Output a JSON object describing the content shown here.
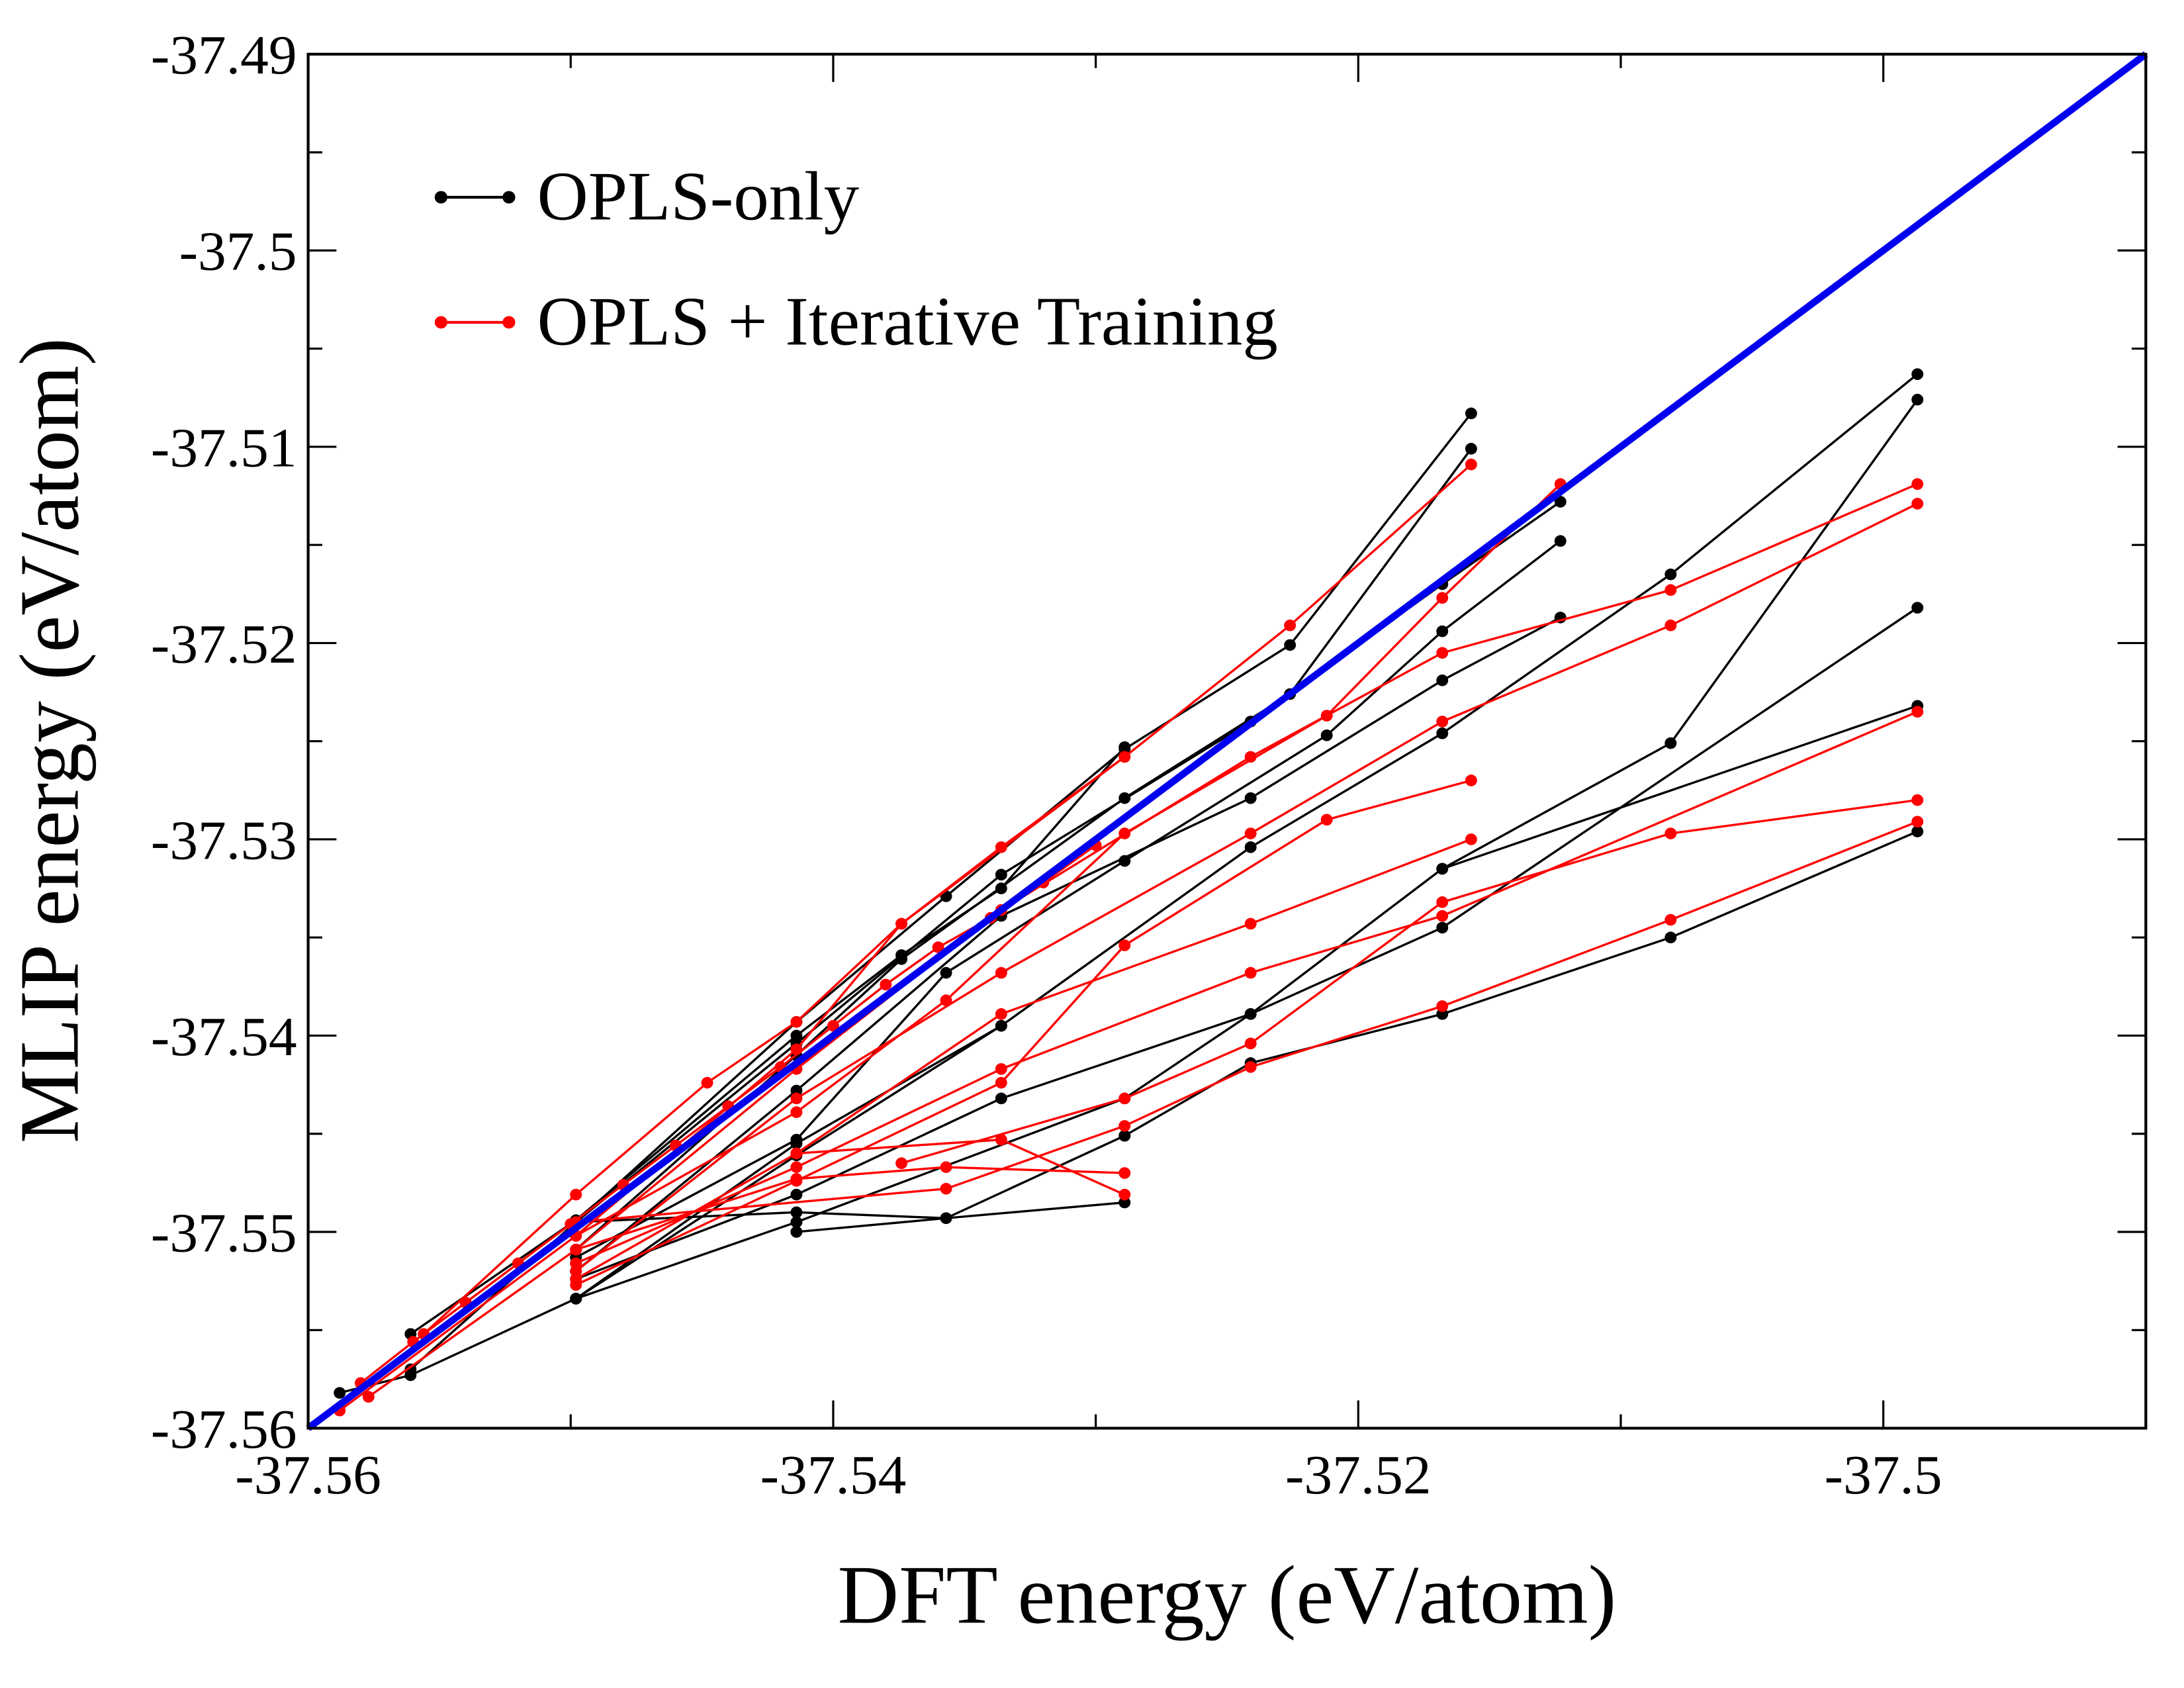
{
  "chart_data": {
    "type": "line",
    "title": "",
    "xlabel": "DFT energy (eV/atom)",
    "ylabel": "MLIP energy (eV/atom)",
    "xlim": [
      -37.56,
      -37.49
    ],
    "ylim": [
      -37.56,
      -37.49
    ],
    "x_ticks": [
      -37.56,
      -37.54,
      -37.52,
      -37.5
    ],
    "x_tick_labels": [
      "-37.56",
      "-37.54",
      "-37.52",
      "-37.5"
    ],
    "x_minor_ticks": [
      -37.55,
      -37.53,
      -37.51
    ],
    "y_ticks": [
      -37.56,
      -37.55,
      -37.54,
      -37.53,
      -37.52,
      -37.51,
      -37.5,
      -37.49
    ],
    "y_tick_labels": [
      "-37.56",
      "-37.55",
      "-37.54",
      "-37.53",
      "-37.52",
      "-37.51",
      "-37.5",
      "-37.49"
    ],
    "y_minor_ticks": [
      -37.555,
      -37.545,
      -37.535,
      -37.525,
      -37.515,
      -37.505,
      -37.495
    ],
    "grid": false,
    "legend_position": "top-left",
    "colors": {
      "opls_only": "#000000",
      "iterative": "#ff0000",
      "parity": "#0000ee"
    },
    "parity_line": {
      "name": "y = x",
      "x": [
        -37.56,
        -37.49
      ],
      "y": [
        -37.56,
        -37.49
      ]
    },
    "series": [
      {
        "name": "OPLS-only",
        "color": "#000000",
        "chains": [
          [
            [
              -37.4987,
              -37.5063
            ],
            [
              -37.5081,
              -37.5165
            ],
            [
              -37.5168,
              -37.5246
            ],
            [
              -37.5241,
              -37.5304
            ],
            [
              -37.5336,
              -37.5395
            ],
            [
              -37.5414,
              -37.5461
            ],
            [
              -37.5498,
              -37.5534
            ],
            [
              -37.5561,
              -37.5573
            ],
            [
              -37.5588,
              -37.5582
            ]
          ],
          [
            [
              -37.4987,
              -37.5076
            ],
            [
              -37.5081,
              -37.5251
            ],
            [
              -37.5168,
              -37.5315
            ],
            [
              -37.5241,
              -37.5389
            ],
            [
              -37.5336,
              -37.5432
            ],
            [
              -37.5414,
              -37.5481
            ],
            [
              -37.5498,
              -37.5524
            ]
          ],
          [
            [
              -37.4987,
              -37.5182
            ],
            [
              -37.5168,
              -37.5345
            ],
            [
              -37.5241,
              -37.5389
            ],
            [
              -37.5289,
              -37.5432
            ],
            [
              -37.5414,
              -37.5495
            ],
            [
              -37.5498,
              -37.5534
            ]
          ],
          [
            [
              -37.4987,
              -37.5232
            ],
            [
              -37.5168,
              -37.5315
            ]
          ],
          [
            [
              -37.4987,
              -37.5296
            ],
            [
              -37.5081,
              -37.535
            ],
            [
              -37.5168,
              -37.5389
            ],
            [
              -37.5241,
              -37.5414
            ],
            [
              -37.5289,
              -37.5451
            ]
          ],
          [
            [
              -37.5157,
              -37.5083
            ],
            [
              -37.5226,
              -37.5201
            ],
            [
              -37.5289,
              -37.5254
            ],
            [
              -37.5357,
              -37.5329
            ],
            [
              -37.5414,
              -37.5393
            ],
            [
              -37.5498,
              -37.5495
            ],
            [
              -37.5561,
              -37.557
            ]
          ],
          [
            [
              -37.5157,
              -37.5101
            ],
            [
              -37.5226,
              -37.5226
            ],
            [
              -37.5289,
              -37.5279
            ],
            [
              -37.5374,
              -37.5361
            ],
            [
              -37.5414,
              -37.541
            ],
            [
              -37.5498,
              -37.5509
            ]
          ],
          [
            [
              -37.5123,
              -37.5128
            ],
            [
              -37.5168,
              -37.517
            ],
            [
              -37.5241,
              -37.524
            ],
            [
              -37.5336,
              -37.5318
            ],
            [
              -37.5414,
              -37.5404
            ],
            [
              -37.5498,
              -37.5495
            ]
          ],
          [
            [
              -37.5123,
              -37.5148
            ],
            [
              -37.5168,
              -37.5194
            ],
            [
              -37.5212,
              -37.5247
            ],
            [
              -37.5289,
              -37.5311
            ],
            [
              -37.5357,
              -37.5368
            ],
            [
              -37.5414,
              -37.5453
            ],
            [
              -37.5498,
              -37.5513
            ]
          ],
          [
            [
              -37.5123,
              -37.5187
            ],
            [
              -37.5168,
              -37.5219
            ],
            [
              -37.5241,
              -37.5279
            ],
            [
              -37.5336,
              -37.5339
            ],
            [
              -37.5414,
              -37.5428
            ],
            [
              -37.5498,
              -37.552
            ]
          ],
          [
            [
              -37.5289,
              -37.5253
            ],
            [
              -37.5336,
              -37.5325
            ],
            [
              -37.5374,
              -37.5359
            ],
            [
              -37.5414,
              -37.54
            ],
            [
              -37.5498,
              -37.5494
            ],
            [
              -37.5561,
              -37.5552
            ]
          ],
          [
            [
              -37.5289,
              -37.5451
            ],
            [
              -37.5357,
              -37.5493
            ],
            [
              -37.5414,
              -37.55
            ]
          ],
          [
            [
              -37.5289,
              -37.5485
            ],
            [
              -37.5357,
              -37.5493
            ],
            [
              -37.5414,
              -37.549
            ],
            [
              -37.5498,
              -37.5495
            ]
          ],
          [
            [
              -37.5336,
              -37.5395
            ],
            [
              -37.5414,
              -37.5455
            ],
            [
              -37.5498,
              -37.5534
            ]
          ]
        ]
      },
      {
        "name": "OPLS + Iterative Training",
        "color": "#ff0000",
        "chains": [
          [
            [
              -37.4987,
              -37.5119
            ],
            [
              -37.5081,
              -37.5173
            ],
            [
              -37.5168,
              -37.5205
            ],
            [
              -37.5241,
              -37.5258
            ],
            [
              -37.5336,
              -37.5336
            ],
            [
              -37.5414,
              -37.5417
            ],
            [
              -37.5498,
              -37.5509
            ],
            [
              -37.5577,
              -37.5584
            ]
          ],
          [
            [
              -37.4987,
              -37.5129
            ],
            [
              -37.5081,
              -37.5191
            ],
            [
              -37.5168,
              -37.524
            ],
            [
              -37.5241,
              -37.5297
            ],
            [
              -37.5336,
              -37.5368
            ],
            [
              -37.5414,
              -37.5432
            ],
            [
              -37.5498,
              -37.552
            ]
          ],
          [
            [
              -37.4987,
              -37.5235
            ],
            [
              -37.5168,
              -37.5339
            ],
            [
              -37.5241,
              -37.5368
            ],
            [
              -37.5336,
              -37.5417
            ],
            [
              -37.5414,
              -37.5467
            ],
            [
              -37.5498,
              -37.5516
            ]
          ],
          [
            [
              -37.4987,
              -37.528
            ],
            [
              -37.5081,
              -37.5297
            ],
            [
              -37.5168,
              -37.5332
            ],
            [
              -37.5241,
              -37.5404
            ],
            [
              -37.5289,
              -37.5432
            ],
            [
              -37.5374,
              -37.5465
            ]
          ],
          [
            [
              -37.4987,
              -37.5291
            ],
            [
              -37.5081,
              -37.5341
            ],
            [
              -37.5168,
              -37.5385
            ],
            [
              -37.5241,
              -37.5416
            ],
            [
              -37.5289,
              -37.5446
            ],
            [
              -37.5357,
              -37.5478
            ],
            [
              -37.5498,
              -37.5495
            ]
          ],
          [
            [
              -37.5157,
              -37.5109
            ],
            [
              -37.5226,
              -37.5191
            ],
            [
              -37.5289,
              -37.5258
            ],
            [
              -37.5374,
              -37.5343
            ],
            [
              -37.5414,
              -37.5407
            ],
            [
              -37.5498,
              -37.5502
            ],
            [
              -37.5588,
              -37.5591
            ]
          ],
          [
            [
              -37.5123,
              -37.5119
            ],
            [
              -37.5168,
              -37.5177
            ],
            [
              -37.5212,
              -37.5237
            ],
            [
              -37.5289,
              -37.5297
            ],
            [
              -37.5357,
              -37.5382
            ],
            [
              -37.5414,
              -37.5439
            ],
            [
              -37.5498,
              -37.5502
            ]
          ],
          [
            [
              -37.5157,
              -37.53
            ],
            [
              -37.5241,
              -37.5343
            ],
            [
              -37.5336,
              -37.5389
            ],
            [
              -37.5414,
              -37.546
            ],
            [
              -37.5498,
              -37.5524
            ]
          ],
          [
            [
              -37.5157,
              -37.527
            ],
            [
              -37.5212,
              -37.529
            ],
            [
              -37.5289,
              -37.5354
            ],
            [
              -37.5336,
              -37.5424
            ],
            [
              -37.5414,
              -37.5474
            ],
            [
              -37.5498,
              -37.5527
            ]
          ],
          [
            [
              -37.5289,
              -37.547
            ],
            [
              -37.5357,
              -37.5467
            ],
            [
              -37.5414,
              -37.5473
            ],
            [
              -37.5498,
              -37.5509
            ]
          ],
          [
            [
              -37.5289,
              -37.5481
            ],
            [
              -37.5336,
              -37.5453
            ],
            [
              -37.5414,
              -37.546
            ]
          ],
          [
            [
              -37.5289,
              -37.5258
            ],
            [
              -37.5336,
              -37.5304
            ],
            [
              -37.5374,
              -37.5343
            ],
            [
              -37.5414,
              -37.5393
            ],
            [
              -37.5448,
              -37.5424
            ],
            [
              -37.5498,
              -37.5481
            ],
            [
              -37.5556,
              -37.5552
            ]
          ],
          [
            [
              -37.558,
              -37.5577
            ],
            [
              -37.556,
              -37.5556
            ],
            [
              -37.554,
              -37.5536
            ],
            [
              -37.552,
              -37.5516
            ],
            [
              -37.55,
              -37.5496
            ],
            [
              -37.548,
              -37.5476
            ],
            [
              -37.546,
              -37.5456
            ],
            [
              -37.544,
              -37.5436
            ],
            [
              -37.542,
              -37.5416
            ],
            [
              -37.54,
              -37.5395
            ],
            [
              -37.538,
              -37.5374
            ],
            [
              -37.536,
              -37.5355
            ],
            [
              -37.534,
              -37.534
            ],
            [
              -37.532,
              -37.5322
            ],
            [
              -37.53,
              -37.5303
            ]
          ]
        ]
      }
    ]
  }
}
